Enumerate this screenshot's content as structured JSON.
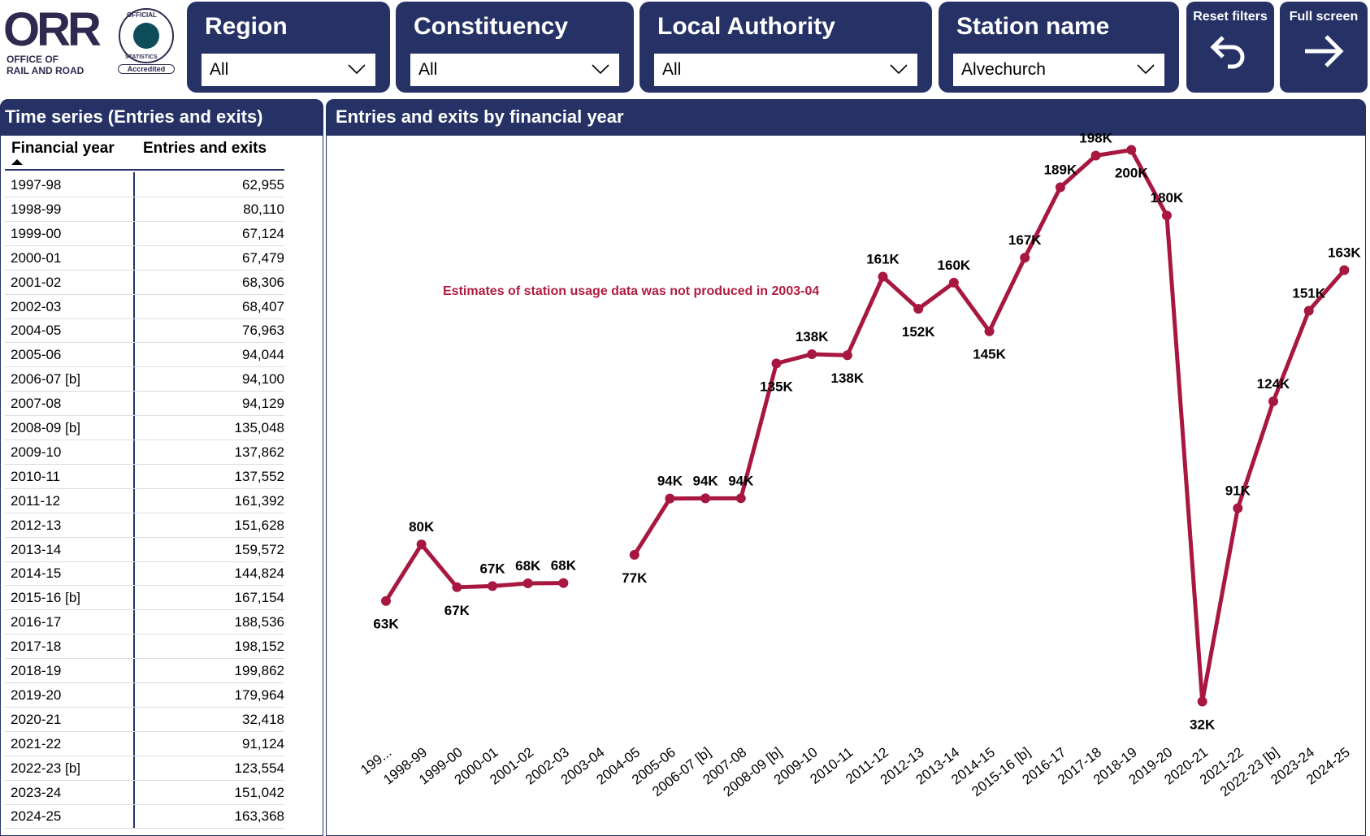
{
  "logo": {
    "orr_text": "ORR",
    "org_line1": "OFFICE OF",
    "org_line2": "RAIL AND ROAD",
    "badge_top": "OFFICIAL",
    "badge_bottom": "STATISTICS",
    "badge_label": "Accredited"
  },
  "filters": [
    {
      "title": "Region",
      "value": "All"
    },
    {
      "title": "Constituency",
      "value": "All"
    },
    {
      "title": "Local Authority",
      "value": "All"
    },
    {
      "title": "Station name",
      "value": "Alvechurch"
    }
  ],
  "buttons": {
    "reset": "Reset filters",
    "fullscreen": "Full screen"
  },
  "table": {
    "title": "Time series (Entries and exits)",
    "headers": [
      "Financial year",
      "Entries and exits"
    ],
    "rows": [
      [
        "1997-98",
        "62,955"
      ],
      [
        "1998-99",
        "80,110"
      ],
      [
        "1999-00",
        "67,124"
      ],
      [
        "2000-01",
        "67,479"
      ],
      [
        "2001-02",
        "68,306"
      ],
      [
        "2002-03",
        "68,407"
      ],
      [
        "2004-05",
        "76,963"
      ],
      [
        "2005-06",
        "94,044"
      ],
      [
        "2006-07 [b]",
        "94,100"
      ],
      [
        "2007-08",
        "94,129"
      ],
      [
        "2008-09 [b]",
        "135,048"
      ],
      [
        "2009-10",
        "137,862"
      ],
      [
        "2010-11",
        "137,552"
      ],
      [
        "2011-12",
        "161,392"
      ],
      [
        "2012-13",
        "151,628"
      ],
      [
        "2013-14",
        "159,572"
      ],
      [
        "2014-15",
        "144,824"
      ],
      [
        "2015-16 [b]",
        "167,154"
      ],
      [
        "2016-17",
        "188,536"
      ],
      [
        "2017-18",
        "198,152"
      ],
      [
        "2018-19",
        "199,862"
      ],
      [
        "2019-20",
        "179,964"
      ],
      [
        "2020-21",
        "32,418"
      ],
      [
        "2021-22",
        "91,124"
      ],
      [
        "2022-23 [b]",
        "123,554"
      ],
      [
        "2023-24",
        "151,042"
      ],
      [
        "2024-25",
        "163,368"
      ]
    ]
  },
  "chart_data": {
    "type": "line",
    "title": "Entries and exits by financial year",
    "annotation": "Estimates of station usage data was not produced in 2003-04",
    "categories": [
      "199...",
      "1998-99",
      "1999-00",
      "2000-01",
      "2001-02",
      "2002-03",
      "2003-04",
      "2004-05",
      "2005-06",
      "2006-07 [b]",
      "2007-08",
      "2008-09 [b]",
      "2009-10",
      "2010-11",
      "2011-12",
      "2012-13",
      "2013-14",
      "2014-15",
      "2015-16 [b]",
      "2016-17",
      "2017-18",
      "2018-19",
      "2019-20",
      "2020-21",
      "2021-22",
      "2022-23 [b]",
      "2023-24",
      "2024-25"
    ],
    "values": [
      62955,
      80110,
      67124,
      67479,
      68306,
      68407,
      null,
      76963,
      94044,
      94100,
      94129,
      135048,
      137862,
      137552,
      161392,
      151628,
      159572,
      144824,
      167154,
      188536,
      198152,
      199862,
      179964,
      32418,
      91124,
      123554,
      151042,
      163368
    ],
    "data_labels": [
      "63K",
      "80K",
      "67K",
      "67K",
      "68K",
      "68K",
      null,
      "77K",
      "94K",
      "94K",
      "94K",
      "135K",
      "138K",
      "138K",
      "161K",
      "152K",
      "160K",
      "145K",
      "167K",
      "189K",
      "198K",
      "200K",
      "180K",
      "32K",
      "91K",
      "124K",
      "151K",
      "163K"
    ],
    "ylim": [
      0,
      200000
    ],
    "grid": false,
    "legend": "none",
    "line_color": "#a8173f",
    "annotation_color": "#b01c40"
  }
}
